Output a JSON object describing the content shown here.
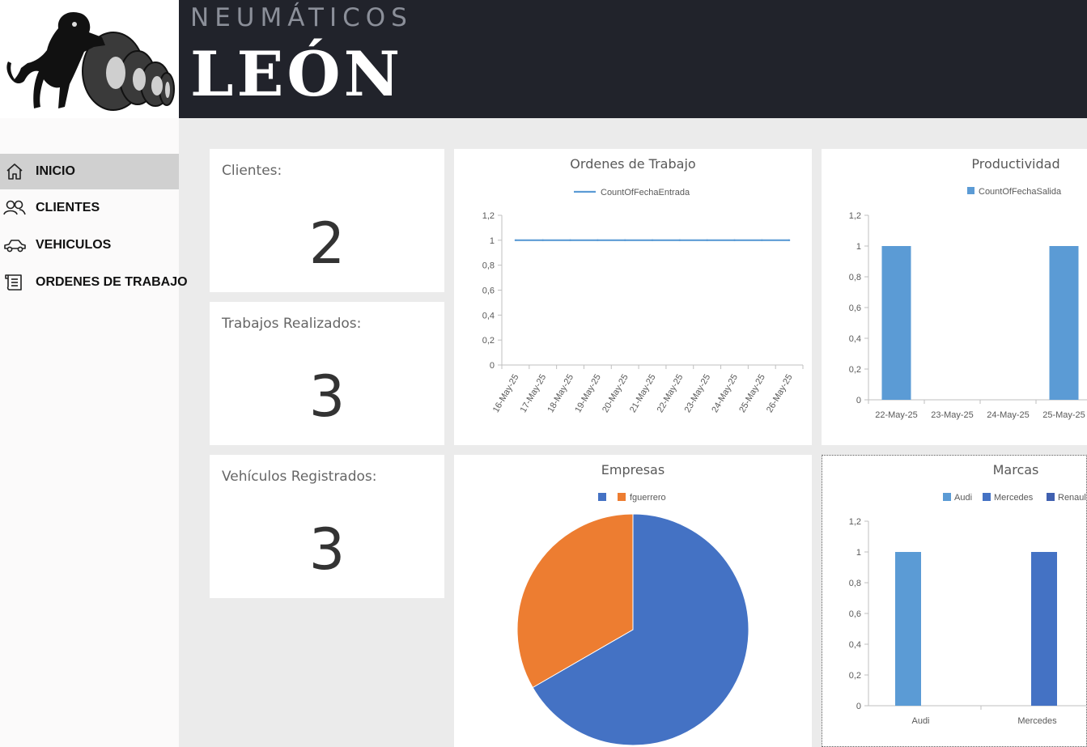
{
  "header": {
    "brand_top": "NEUMÁTICOS",
    "brand_main": "LEÓN"
  },
  "sidebar": {
    "items": [
      {
        "label": "INICIO",
        "icon": "home-icon",
        "active": true
      },
      {
        "label": "CLIENTES",
        "icon": "users-icon",
        "active": false
      },
      {
        "label": "VEHICULOS",
        "icon": "car-icon",
        "active": false
      },
      {
        "label": "ORDENES DE TRABAJO",
        "icon": "scroll-icon",
        "active": false
      }
    ]
  },
  "kpis": [
    {
      "label": "Clientes:",
      "value": "2"
    },
    {
      "label": "Trabajos Realizados:",
      "value": "3"
    },
    {
      "label": "Vehículos Registrados:",
      "value": "3"
    }
  ],
  "colors": {
    "header_bg": "#21232b",
    "line": "#5b9bd5",
    "bar": "#5b9bd5",
    "pie_blue": "#4472c4",
    "pie_orange": "#ed7d31"
  },
  "chart_data": [
    {
      "type": "line",
      "title": "Ordenes de Trabajo",
      "x": [
        "16-May-25",
        "17-May-25",
        "18-May-25",
        "19-May-25",
        "20-May-25",
        "21-May-25",
        "22-May-25",
        "23-May-25",
        "24-May-25",
        "25-May-25",
        "26-May-25"
      ],
      "series": [
        {
          "name": "CountOfFechaEntrada",
          "values": [
            1,
            1,
            1,
            1,
            1,
            1,
            1,
            1,
            1,
            1,
            1
          ],
          "color": "#5b9bd5"
        }
      ],
      "yticks": [
        "0",
        "0,2",
        "0,4",
        "0,6",
        "0,8",
        "1",
        "1,2"
      ],
      "ylim": [
        0,
        1.2
      ],
      "legend": "top"
    },
    {
      "type": "bar",
      "title": "Productividad",
      "categories": [
        "22-May-25",
        "23-May-25",
        "24-May-25",
        "25-May-25"
      ],
      "series": [
        {
          "name": "CountOfFechaSalida",
          "values": [
            1,
            0,
            0,
            1
          ],
          "color": "#5b9bd5"
        }
      ],
      "yticks": [
        "0",
        "0,2",
        "0,4",
        "0,6",
        "0,8",
        "1",
        "1,2"
      ],
      "ylim": [
        0,
        1.2
      ],
      "legend": "top"
    },
    {
      "type": "pie",
      "title": "Empresas",
      "slices": [
        {
          "name": "",
          "value": 2,
          "color": "#4472c4"
        },
        {
          "name": "fguerrero",
          "value": 1,
          "color": "#ed7d31"
        }
      ],
      "legend": "top"
    },
    {
      "type": "bar",
      "title": "Marcas",
      "categories": [
        "Audi",
        "Mercedes"
      ],
      "series": [
        {
          "name": "Audi",
          "values": [
            1,
            0
          ],
          "color": "#5b9bd5"
        },
        {
          "name": "Mercedes",
          "values": [
            0,
            1
          ],
          "color": "#4472c4"
        },
        {
          "name": "Renaul",
          "values": [
            0,
            0
          ],
          "color": "#4060b0"
        }
      ],
      "yticks": [
        "0",
        "0,2",
        "0,4",
        "0,6",
        "0,8",
        "1",
        "1,2"
      ],
      "ylim": [
        0,
        1.2
      ],
      "legend": "top"
    }
  ]
}
